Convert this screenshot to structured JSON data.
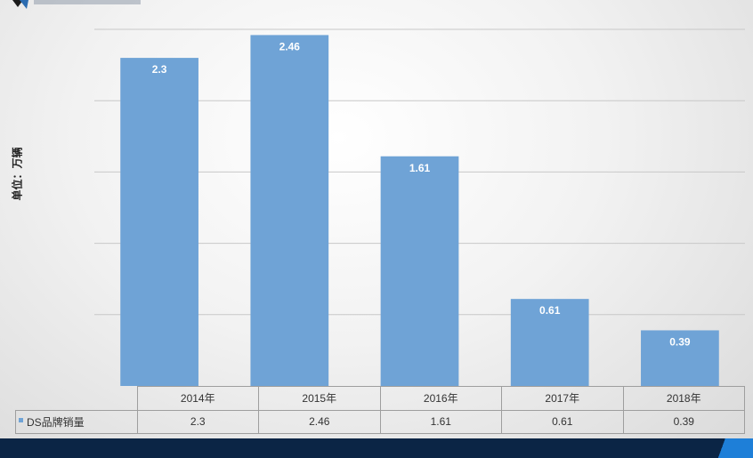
{
  "colors": {
    "bar": "#6fa3d6",
    "grid": "#c8c8c8",
    "footer": "#0b2545",
    "accent": "#1e7fd8"
  },
  "ylabel": "单位：万辆",
  "legend_series": "DS品牌销量",
  "chart_data": {
    "type": "bar",
    "title": "",
    "xlabel": "",
    "ylabel": "单位：万辆",
    "categories": [
      "2014年",
      "2015年",
      "2016年",
      "2017年",
      "2018年"
    ],
    "series": [
      {
        "name": "DS品牌销量",
        "values": [
          2.3,
          2.46,
          1.61,
          0.61,
          0.39
        ]
      }
    ],
    "ylim": [
      0,
      2.5
    ],
    "grid": true,
    "data_labels": true,
    "data_table": true
  }
}
